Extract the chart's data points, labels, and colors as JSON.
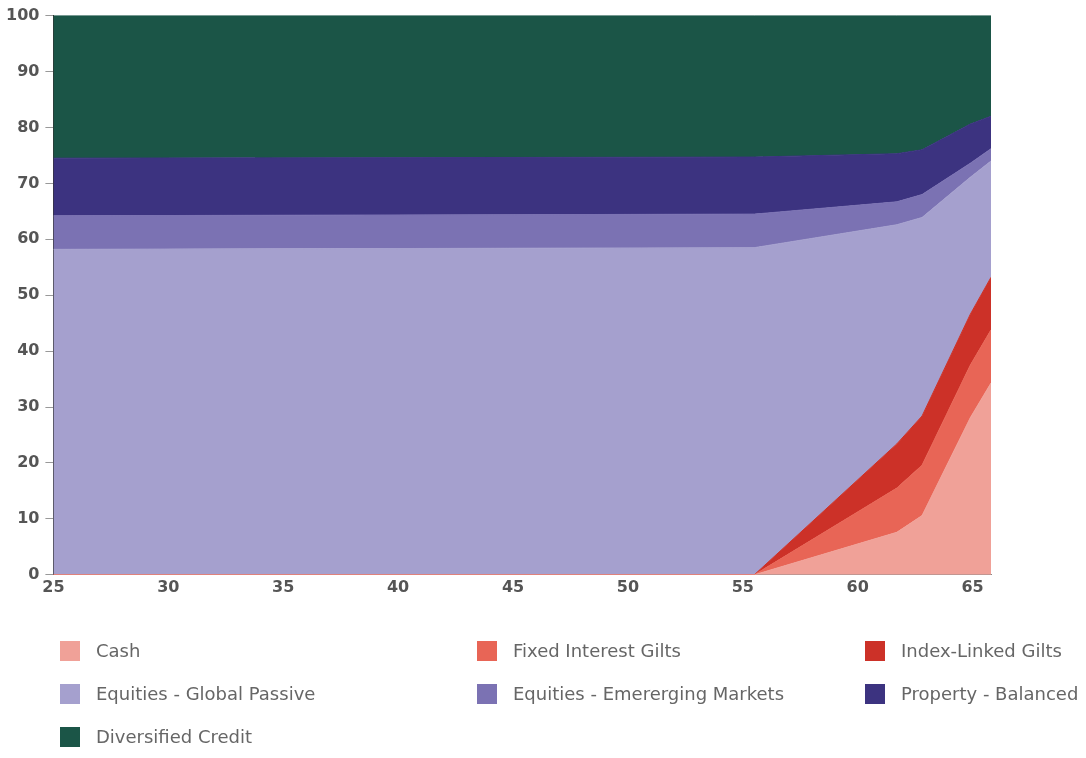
{
  "chart_data": {
    "type": "area",
    "stacked": true,
    "x": [
      25,
      55.5,
      61.7,
      62.8,
      64.9,
      65.8
    ],
    "series": [
      {
        "name": "Cash",
        "color": "#f0a198",
        "values": [
          0,
          0,
          7.6,
          10.6,
          28.1,
          34.3
        ]
      },
      {
        "name": "Fixed Interest Gilts",
        "color": "#e86556",
        "values": [
          0,
          0,
          7.9,
          9.0,
          9.4,
          9.5
        ]
      },
      {
        "name": "Index-Linked Gilts",
        "color": "#cc3128",
        "values": [
          0,
          0,
          7.9,
          8.8,
          9.1,
          9.4
        ]
      },
      {
        "name": "Equities - Global Passive",
        "color": "#a5a0ce",
        "values": [
          58.2,
          58.5,
          39.2,
          35.5,
          24.5,
          20.8
        ]
      },
      {
        "name": "Equities - Emererging Markets",
        "color": "#7b72b3",
        "values": [
          6.0,
          6.0,
          4.1,
          4.1,
          2.5,
          2.2
        ]
      },
      {
        "name": "Property - Balanced",
        "color": "#3c3380",
        "values": [
          10.3,
          10.2,
          8.6,
          8.0,
          7.0,
          5.8
        ]
      },
      {
        "name": "Diversified Credit",
        "color": "#1b5547",
        "values": [
          25.5,
          25.3,
          24.7,
          24.0,
          19.4,
          18.0
        ]
      }
    ],
    "xlim": [
      25,
      65.8
    ],
    "xticks": [
      25,
      30,
      35,
      40,
      45,
      50,
      55,
      60,
      65
    ],
    "ylim": [
      0,
      100
    ],
    "yticks": [
      0,
      10,
      20,
      30,
      40,
      50,
      60,
      70,
      80,
      90,
      100
    ],
    "grid": false,
    "legend": "bottom"
  }
}
